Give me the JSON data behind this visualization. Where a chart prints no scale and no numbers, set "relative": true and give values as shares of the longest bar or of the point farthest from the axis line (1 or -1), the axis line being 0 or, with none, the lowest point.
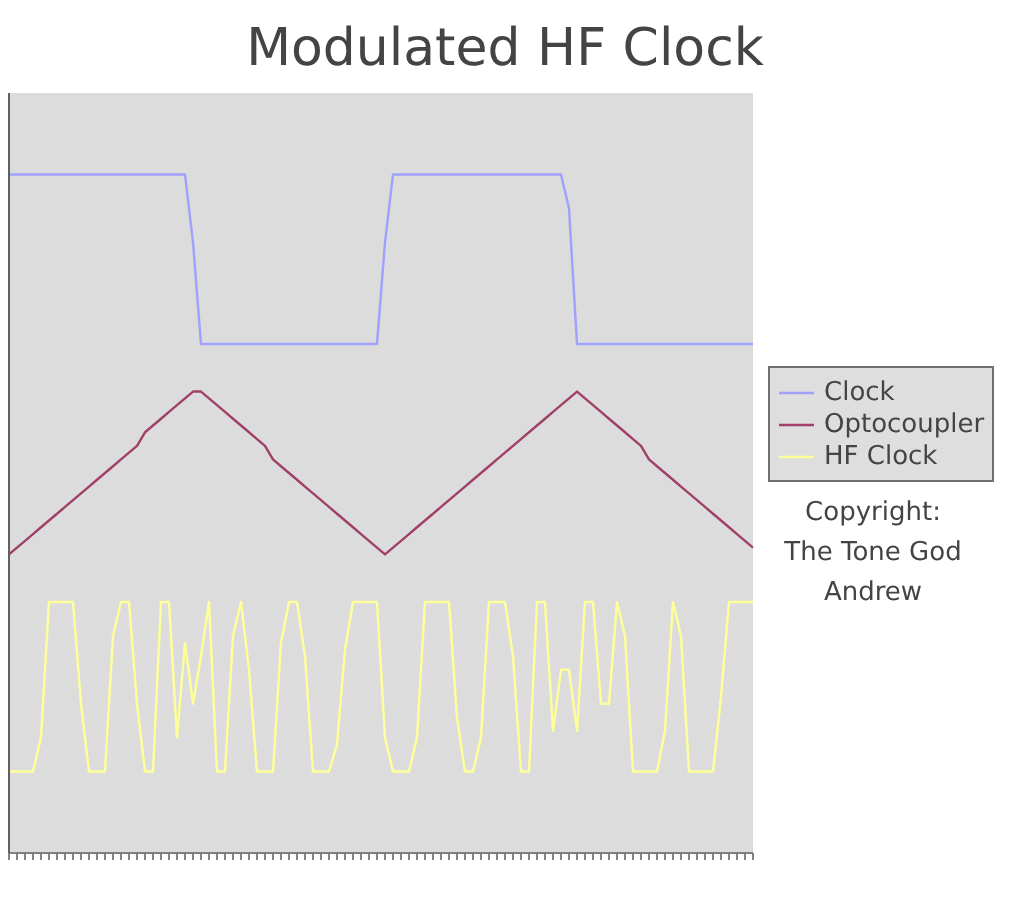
{
  "chart_data": {
    "type": "line",
    "title": "Modulated HF Clock",
    "relative": true,
    "legend": "right",
    "categories": [
      null,
      null,
      null,
      null,
      null,
      null,
      null,
      null,
      null,
      null,
      null,
      null,
      null,
      null,
      null,
      null,
      null,
      null,
      null,
      null,
      null,
      null,
      null,
      null,
      null,
      null,
      null,
      null,
      null,
      null,
      null,
      null,
      null,
      null,
      null,
      null,
      null,
      null,
      null,
      null,
      null,
      null,
      null,
      null,
      null,
      null,
      null,
      null,
      null,
      null,
      null,
      null,
      null,
      null,
      null,
      null,
      null,
      null,
      null,
      null,
      null,
      null,
      null,
      null,
      null,
      null,
      null,
      null,
      null,
      null,
      null,
      null,
      null,
      null,
      null,
      null,
      null,
      null,
      null,
      null,
      null,
      null,
      null,
      null,
      null,
      null,
      null,
      null,
      null,
      null,
      null,
      null,
      null,
      null
    ],
    "series": [
      {
        "name": "Clock",
        "color": "#a0a0ff",
        "values": [
          1,
          1,
          1,
          1,
          1,
          1,
          1,
          1,
          1,
          1,
          1,
          1,
          1,
          1,
          1,
          1,
          1,
          1,
          1,
          1,
          1,
          1,
          1,
          0.9,
          0.75,
          0.75,
          0.75,
          0.75,
          0.75,
          0.75,
          0.75,
          0.75,
          0.75,
          0.75,
          0.75,
          0.75,
          0.75,
          0.75,
          0.75,
          0.75,
          0.75,
          0.75,
          0.75,
          0.75,
          0.75,
          0.75,
          0.75,
          0.9,
          1,
          1,
          1,
          1,
          1,
          1,
          1,
          1,
          1,
          1,
          1,
          1,
          1,
          1,
          1,
          1,
          1,
          1,
          1,
          1,
          1,
          1,
          0.95,
          0.75,
          0.75,
          0.75,
          0.75,
          0.75,
          0.75,
          0.75,
          0.75,
          0.75,
          0.75,
          0.75,
          0.75,
          0.75,
          0.75,
          0.75,
          0.75,
          0.75,
          0.75,
          0.75,
          0.75,
          0.75,
          0.75,
          0.75
        ]
      },
      {
        "name": "Optocoupler",
        "color": "#a0406a",
        "values": [
          0.44,
          0.45,
          0.46,
          0.47,
          0.48,
          0.49,
          0.5,
          0.51,
          0.52,
          0.53,
          0.54,
          0.55,
          0.56,
          0.57,
          0.58,
          0.59,
          0.6,
          0.62,
          0.63,
          0.64,
          0.65,
          0.66,
          0.67,
          0.68,
          0.68,
          0.67,
          0.66,
          0.65,
          0.64,
          0.63,
          0.62,
          0.61,
          0.6,
          0.58,
          0.57,
          0.56,
          0.55,
          0.54,
          0.53,
          0.52,
          0.51,
          0.5,
          0.49,
          0.48,
          0.47,
          0.46,
          0.45,
          0.44,
          0.45,
          0.46,
          0.47,
          0.48,
          0.49,
          0.5,
          0.51,
          0.52,
          0.53,
          0.54,
          0.55,
          0.56,
          0.57,
          0.58,
          0.59,
          0.6,
          0.61,
          0.62,
          0.63,
          0.64,
          0.65,
          0.66,
          0.67,
          0.68,
          0.67,
          0.66,
          0.65,
          0.64,
          0.63,
          0.62,
          0.61,
          0.6,
          0.58,
          0.57,
          0.56,
          0.55,
          0.54,
          0.53,
          0.52,
          0.51,
          0.5,
          0.49,
          0.48,
          0.47,
          0.46,
          0.45
        ]
      },
      {
        "name": "HF Clock",
        "color": "#ffff99",
        "values": [
          0.12,
          0.12,
          0.12,
          0.12,
          0.17,
          0.37,
          0.37,
          0.37,
          0.37,
          0.22,
          0.12,
          0.12,
          0.12,
          0.32,
          0.37,
          0.37,
          0.22,
          0.12,
          0.12,
          0.37,
          0.37,
          0.17,
          0.31,
          0.22,
          0.29,
          0.37,
          0.12,
          0.12,
          0.32,
          0.37,
          0.27,
          0.12,
          0.12,
          0.12,
          0.31,
          0.37,
          0.37,
          0.29,
          0.12,
          0.12,
          0.12,
          0.16,
          0.3,
          0.37,
          0.37,
          0.37,
          0.37,
          0.17,
          0.12,
          0.12,
          0.12,
          0.17,
          0.37,
          0.37,
          0.37,
          0.37,
          0.2,
          0.12,
          0.12,
          0.17,
          0.37,
          0.37,
          0.37,
          0.29,
          0.12,
          0.12,
          0.37,
          0.37,
          0.18,
          0.27,
          0.27,
          0.18,
          0.37,
          0.37,
          0.22,
          0.22,
          0.37,
          0.32,
          0.12,
          0.12,
          0.12,
          0.12,
          0.18,
          0.37,
          0.32,
          0.12,
          0.12,
          0.12,
          0.12,
          0.23,
          0.37,
          0.37,
          0.37,
          0.37
        ]
      }
    ],
    "annotations": [
      "Copyright:",
      "The Tone God",
      "Andrew"
    ]
  }
}
